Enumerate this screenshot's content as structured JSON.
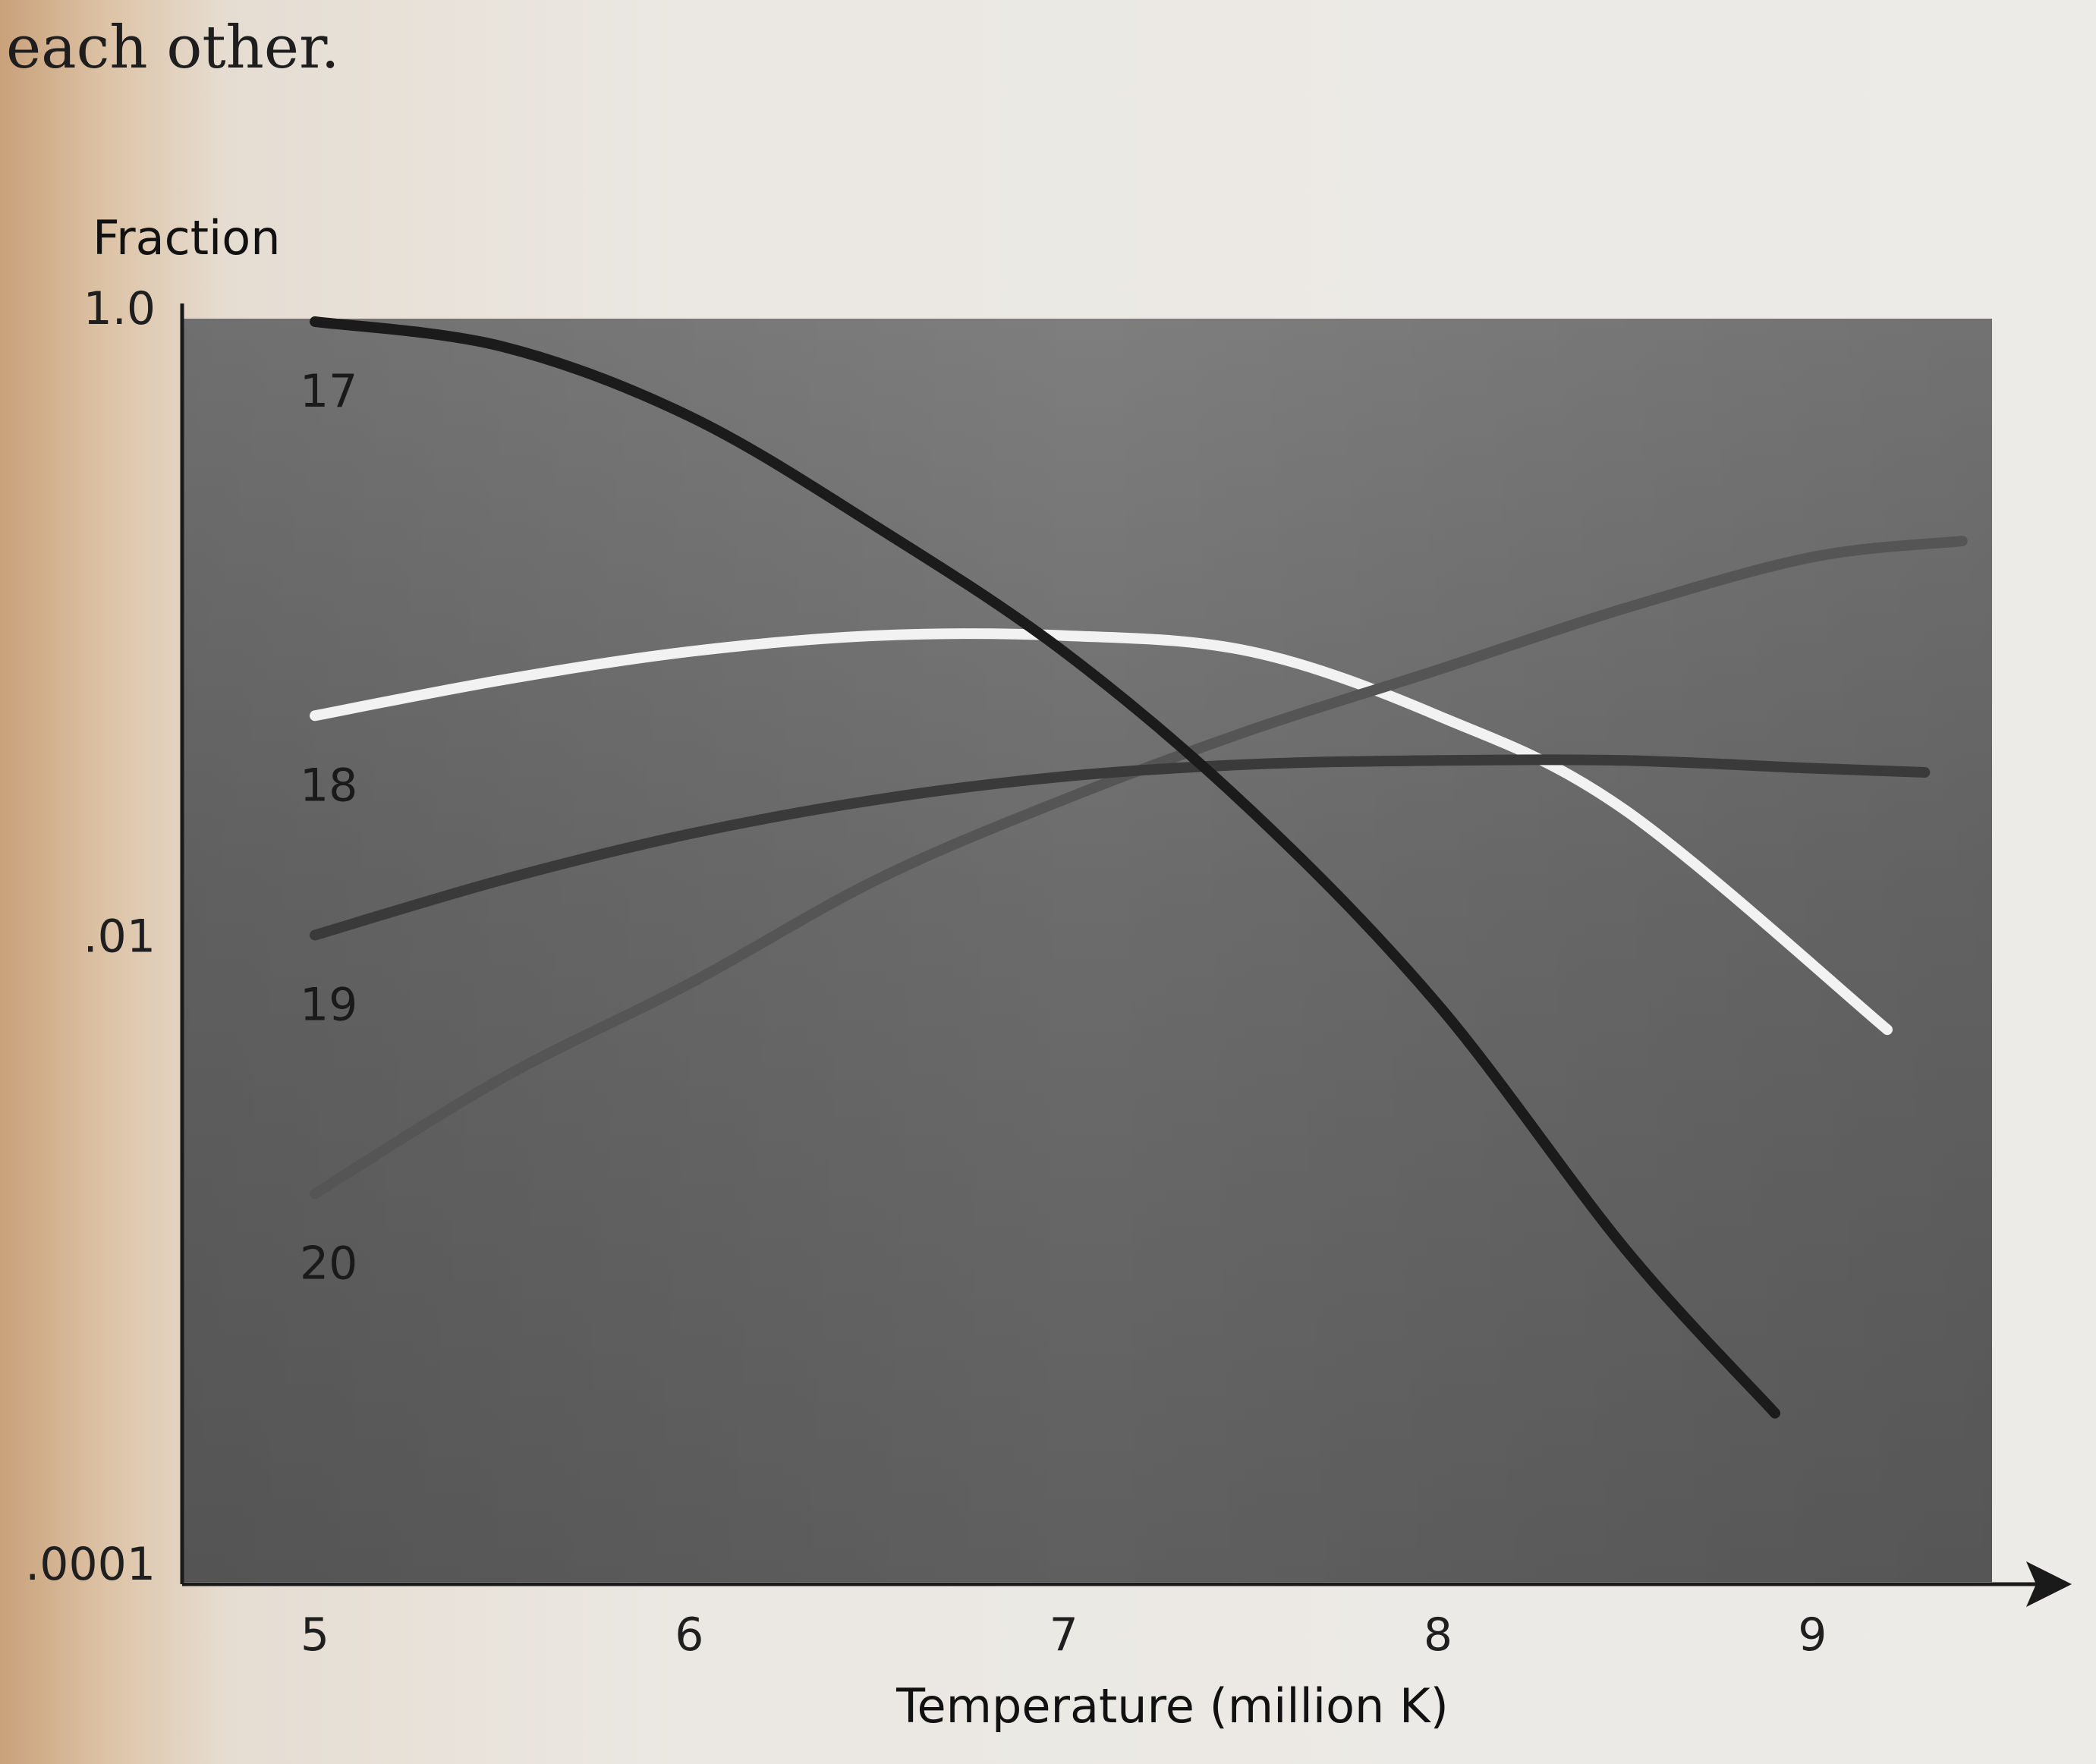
{
  "page_text": "each other.",
  "chart_data": {
    "type": "line",
    "ylabel": "Fraction",
    "xlabel": "Temperature (million K)",
    "xlim": [
      5,
      9.5
    ],
    "ylim": [
      0.0001,
      1.0
    ],
    "yscale": "log",
    "x_ticks": [
      5,
      6,
      7,
      8,
      9
    ],
    "y_ticks": [
      {
        "value": 1.0,
        "label": "1.0"
      },
      {
        "value": 0.01,
        "label": ".01"
      },
      {
        "value": 0.0001,
        "label": ".0001"
      }
    ],
    "grid": false,
    "legend": "none",
    "series": [
      {
        "name": "17",
        "color": "#1b1b1b",
        "x": [
          5.0,
          5.5,
          6.0,
          6.5,
          7.0,
          7.5,
          8.0,
          8.5,
          8.9
        ],
        "y": [
          0.9,
          0.75,
          0.45,
          0.2,
          0.08,
          0.025,
          0.006,
          0.001,
          0.0003
        ]
      },
      {
        "name": "18",
        "color": "#f2f2f2",
        "x": [
          5.0,
          5.5,
          6.0,
          6.5,
          7.0,
          7.5,
          8.0,
          8.5,
          9.2
        ],
        "y": [
          0.05,
          0.065,
          0.08,
          0.09,
          0.09,
          0.08,
          0.05,
          0.025,
          0.005
        ]
      },
      {
        "name": "19",
        "color": "#3a3a3a",
        "x": [
          5.0,
          5.5,
          6.0,
          6.5,
          7.0,
          7.5,
          8.0,
          8.5,
          9.0,
          9.3
        ],
        "y": [
          0.01,
          0.015,
          0.021,
          0.027,
          0.032,
          0.035,
          0.036,
          0.036,
          0.034,
          0.033
        ]
      },
      {
        "name": "20",
        "color": "#555555",
        "x": [
          5.0,
          5.5,
          6.0,
          6.5,
          7.0,
          7.5,
          8.0,
          8.5,
          9.0,
          9.4
        ],
        "y": [
          0.0015,
          0.0035,
          0.007,
          0.015,
          0.027,
          0.045,
          0.07,
          0.11,
          0.16,
          0.18
        ]
      }
    ],
    "colors": {
      "plot_background": "#6a6a6a",
      "axis": "#1a1a1a"
    }
  }
}
